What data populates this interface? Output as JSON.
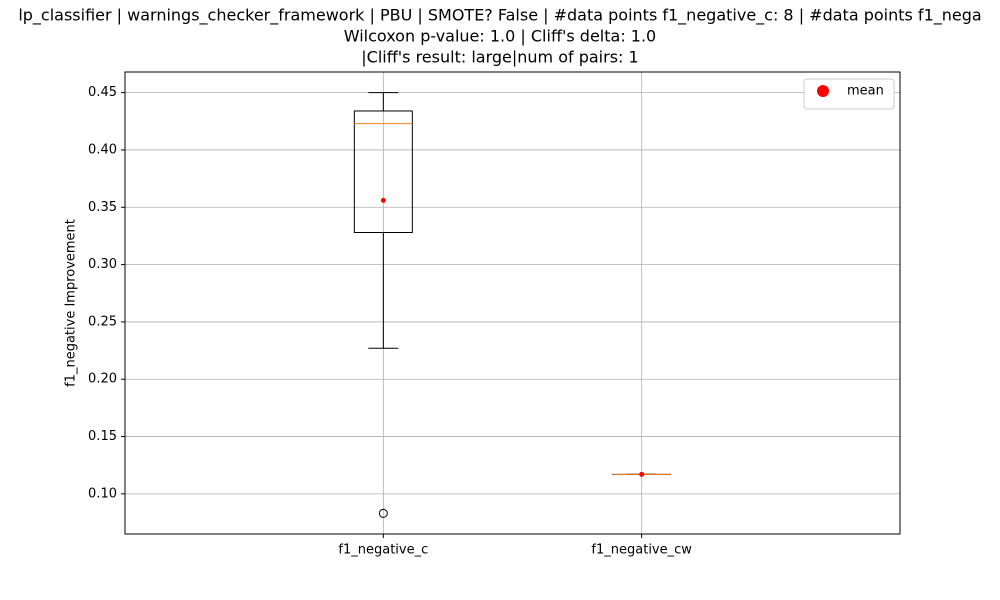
{
  "chart_data": {
    "type": "box",
    "title": [
      "lp_classifier | warnings_checker_framework | PBU | SMOTE? False | #data points f1_negative_c: 8 | #data points f1_nega",
      "Wilcoxon p-value: 1.0 | Cliff's delta: 1.0",
      "|Cliff's result: large|num of pairs: 1"
    ],
    "y_label": "f1_negative Improvement",
    "categories": [
      "f1_negative_c",
      "f1_negative_cw"
    ],
    "boxes": [
      {
        "whislo": 0.227,
        "q1": 0.328,
        "med": 0.423,
        "q3": 0.434,
        "whishi": 0.45,
        "fliers": [
          0.083
        ],
        "mean": 0.356
      },
      {
        "whislo": 0.117,
        "q1": 0.117,
        "med": 0.117,
        "q3": 0.117,
        "whishi": 0.117,
        "fliers": [],
        "mean": 0.117
      }
    ],
    "box_color": "#000000",
    "median_color": "#ff7f0e",
    "mean_color": "#ff0000",
    "legend": {
      "labels": [
        "mean"
      ],
      "position": "upper right"
    },
    "ylim": [
      0.065,
      0.468
    ],
    "yticks": [
      {
        "value": 0.1,
        "label": "0.10"
      },
      0.15,
      {
        "value": 0.2,
        "label": "0.20"
      },
      0.25,
      {
        "value": 0.3,
        "label": "0.30"
      },
      0.35,
      {
        "value": 0.4,
        "label": "0.40"
      },
      0.45
    ],
    "grid": true
  }
}
